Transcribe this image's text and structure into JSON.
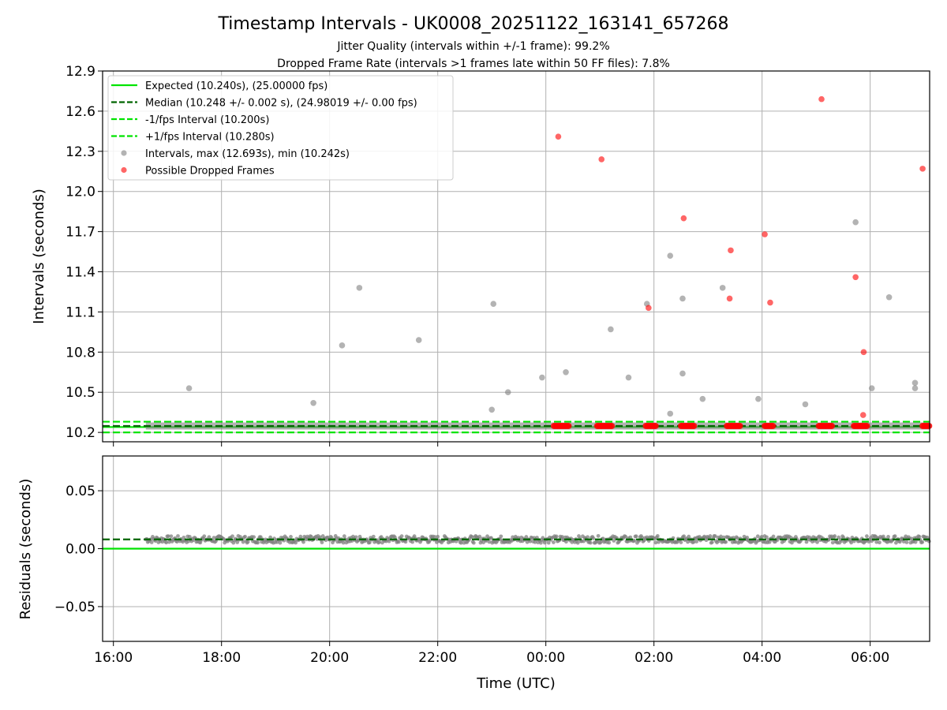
{
  "chart_data": {
    "type": "scatter",
    "title": "Timestamp Intervals - UK0008_20251122_163141_657268",
    "subtitles": [
      "Jitter Quality (intervals within +/-1 frame): 99.2%",
      "Dropped Frame Rate (intervals >1 frames late within 50 FF files): 7.8%"
    ],
    "xlabel": "Time (UTC)",
    "x_ticks": [
      "16:00",
      "18:00",
      "20:00",
      "22:00",
      "00:00",
      "02:00",
      "04:00",
      "06:00"
    ],
    "x_tick_hours": [
      0,
      2,
      4,
      6,
      8,
      10,
      12,
      14
    ],
    "x_range_hours": [
      -0.2,
      15.1
    ],
    "data_start_hour": 0.6,
    "top_panel": {
      "ylabel": "Intervals (seconds)",
      "ylim": [
        10.13,
        12.9
      ],
      "y_ticks": [
        "12.9",
        "12.6",
        "12.3",
        "12.0",
        "11.7",
        "11.4",
        "11.1",
        "10.8",
        "10.5",
        "10.2"
      ],
      "y_tick_values": [
        12.9,
        12.6,
        12.3,
        12.0,
        11.7,
        11.4,
        11.1,
        10.8,
        10.5,
        10.2
      ],
      "expected": 10.24,
      "median": 10.248,
      "minus_interval": 10.2,
      "plus_interval": 10.28,
      "legend": [
        {
          "label": "Expected (10.240s), (25.00000 fps)",
          "style": "solid",
          "color": "#00e400"
        },
        {
          "label": "Median (10.248 +/- 0.002 s), (24.98019 +/- 0.00 fps)",
          "style": "dashed",
          "color": "#006400"
        },
        {
          "label": "-1/fps Interval (10.200s)",
          "style": "dashed",
          "color": "#00e400"
        },
        {
          "label": "+1/fps Interval (10.280s)",
          "style": "dashed",
          "color": "#00e400"
        },
        {
          "label": "Intervals, max (12.693s), min (10.242s)",
          "style": "marker",
          "color": "#808080"
        },
        {
          "label": "Possible Dropped Frames",
          "style": "marker",
          "color": "#ff0000"
        }
      ],
      "intervals": [
        [
          1.4,
          10.53
        ],
        [
          3.7,
          10.42
        ],
        [
          4.23,
          10.85
        ],
        [
          4.55,
          11.28
        ],
        [
          5.65,
          10.89
        ],
        [
          7.0,
          10.37
        ],
        [
          7.03,
          11.16
        ],
        [
          7.3,
          10.5
        ],
        [
          7.93,
          10.61
        ],
        [
          8.37,
          10.65
        ],
        [
          9.2,
          10.97
        ],
        [
          9.53,
          10.61
        ],
        [
          9.87,
          11.16
        ],
        [
          10.3,
          10.34
        ],
        [
          10.3,
          11.52
        ],
        [
          10.53,
          11.2
        ],
        [
          10.53,
          10.64
        ],
        [
          10.9,
          10.45
        ],
        [
          11.27,
          11.28
        ],
        [
          11.93,
          10.45
        ],
        [
          12.8,
          10.41
        ],
        [
          13.73,
          11.77
        ],
        [
          14.03,
          10.53
        ],
        [
          14.35,
          11.21
        ],
        [
          14.83,
          10.57
        ],
        [
          14.83,
          10.53
        ]
      ],
      "dropped": [
        [
          8.23,
          12.41
        ],
        [
          9.03,
          12.24
        ],
        [
          9.9,
          11.13
        ],
        [
          10.55,
          11.8
        ],
        [
          11.4,
          11.2
        ],
        [
          11.42,
          11.56
        ],
        [
          12.05,
          11.68
        ],
        [
          12.15,
          11.17
        ],
        [
          13.1,
          12.69
        ],
        [
          13.73,
          11.36
        ],
        [
          13.88,
          10.8
        ],
        [
          13.87,
          10.33
        ],
        [
          14.97,
          12.17
        ]
      ],
      "dropped_clusters": [
        [
          8.15,
          8.42
        ],
        [
          8.95,
          9.22
        ],
        [
          9.85,
          10.05
        ],
        [
          10.5,
          10.75
        ],
        [
          11.35,
          11.6
        ],
        [
          12.05,
          12.2
        ],
        [
          13.05,
          13.3
        ],
        [
          13.7,
          13.95
        ],
        [
          14.97,
          15.1
        ]
      ]
    },
    "bottom_panel": {
      "ylabel": "Residuals (seconds)",
      "ylim": [
        -0.08,
        0.08
      ],
      "y_ticks": [
        "0.05",
        "0.00",
        "−0.05"
      ],
      "y_tick_values": [
        0.05,
        0.0,
        -0.05
      ],
      "median_residual": 0.008,
      "expected_residual": 0.0,
      "residual_mean": 0.008,
      "residual_spread": 0.003
    }
  }
}
